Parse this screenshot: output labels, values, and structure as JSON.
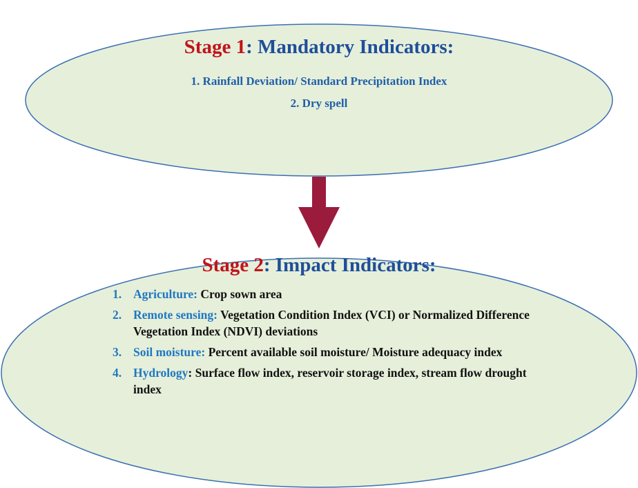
{
  "stage1": {
    "label": "Stage 1",
    "title": ": Mandatory Indicators:",
    "items": [
      "1. Rainfall Deviation/ Standard Precipitation Index",
      "2. Dry  spell"
    ]
  },
  "stage2": {
    "label": "Stage 2",
    "title": ": Impact Indicators:",
    "items": [
      {
        "number": "1.",
        "category": "Agriculture:",
        "text": "Crop sown area"
      },
      {
        "number": "2.",
        "category": "Remote sensing:",
        "text": "Vegetation Condition Index (VCI) or Normalized Difference Vegetation Index (NDVI) deviations"
      },
      {
        "number": "3.",
        "category": "Soil moisture:",
        "text": "Percent available soil moisture/ Moisture adequacy index"
      },
      {
        "number": "4.",
        "category": "Hydrology",
        "text": ": Surface flow index, reservoir storage index, stream flow drought index"
      }
    ]
  }
}
